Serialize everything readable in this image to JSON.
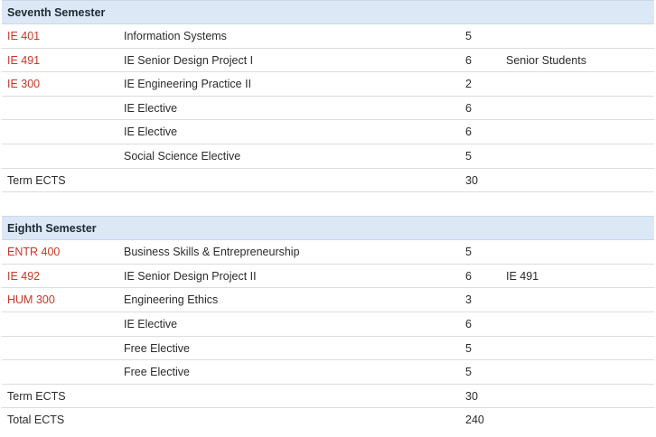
{
  "semesters": [
    {
      "title": "Seventh Semester",
      "courses": [
        {
          "code": "IE 401",
          "name": "Information Systems",
          "ects": "5",
          "prereq": ""
        },
        {
          "code": "IE 491",
          "name": "IE Senior Design Project I",
          "ects": "6",
          "prereq": "Senior Students"
        },
        {
          "code": "IE 300",
          "name": "IE Engineering Practice II",
          "ects": "2",
          "prereq": ""
        },
        {
          "code": "",
          "name": "IE Elective",
          "ects": "6",
          "prereq": ""
        },
        {
          "code": "",
          "name": "IE Elective",
          "ects": "6",
          "prereq": ""
        },
        {
          "code": "",
          "name": "Social Science Elective",
          "ects": "5",
          "prereq": ""
        }
      ],
      "term_label": "Term ECTS",
      "term_ects": "30"
    },
    {
      "title": "Eighth Semester",
      "courses": [
        {
          "code": "ENTR 400",
          "name": "Business Skills & Entrepreneurship",
          "ects": "5",
          "prereq": ""
        },
        {
          "code": "IE 492",
          "name": "IE Senior Design Project II",
          "ects": "6",
          "prereq": "IE 491"
        },
        {
          "code": "HUM 300",
          "name": "Engineering Ethics",
          "ects": "3",
          "prereq": ""
        },
        {
          "code": "",
          "name": "IE Elective",
          "ects": "6",
          "prereq": ""
        },
        {
          "code": "",
          "name": "Free Elective",
          "ects": "5",
          "prereq": ""
        },
        {
          "code": "",
          "name": "Free Elective",
          "ects": "5",
          "prereq": ""
        }
      ],
      "term_label": "Term ECTS",
      "term_ects": "30"
    }
  ],
  "total": {
    "label": "Total ECTS",
    "value": "240"
  },
  "colors": {
    "link": "#c0392b",
    "header_bg": "#dce8f5"
  }
}
